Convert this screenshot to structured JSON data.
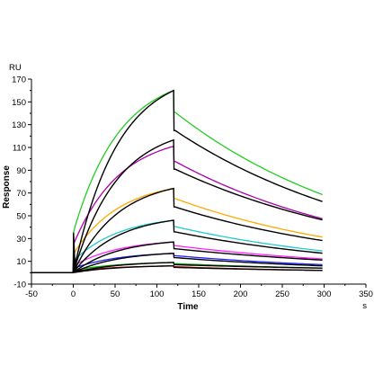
{
  "chart_data": {
    "type": "line",
    "xlabel": "Time",
    "ylabel": "Response",
    "x_unit": "s",
    "y_unit": "RU",
    "xlim": [
      -50,
      350
    ],
    "ylim": [
      -10,
      170
    ],
    "x_ticks": [
      -50,
      0,
      50,
      100,
      150,
      200,
      250,
      300,
      350
    ],
    "y_ticks": [
      -10,
      10,
      30,
      50,
      70,
      90,
      110,
      130,
      150,
      170
    ],
    "grid": false,
    "association_end": 120,
    "series": [
      {
        "color": "#22cc22",
        "peak": 160,
        "end": 68,
        "fit_end": 62
      },
      {
        "color": "#aa00aa",
        "peak": 111,
        "end": 47,
        "fit_end": 46
      },
      {
        "color": "#ffaa00",
        "peak": 74,
        "end": 31,
        "fit_end": 28
      },
      {
        "color": "#22cccc",
        "peak": 46,
        "end": 19,
        "fit_end": 17
      },
      {
        "color": "#ff22ff",
        "peak": 27,
        "end": 12,
        "fit_end": 11
      },
      {
        "color": "#2222ff",
        "peak": 17,
        "end": 7,
        "fit_end": 6
      },
      {
        "color": "#00aa00",
        "peak": 9,
        "end": 4,
        "fit_end": 4
      },
      {
        "color": "#cc0000",
        "peak": 6,
        "end": 2,
        "fit_end": 2
      }
    ],
    "fit_color": "#000000"
  }
}
